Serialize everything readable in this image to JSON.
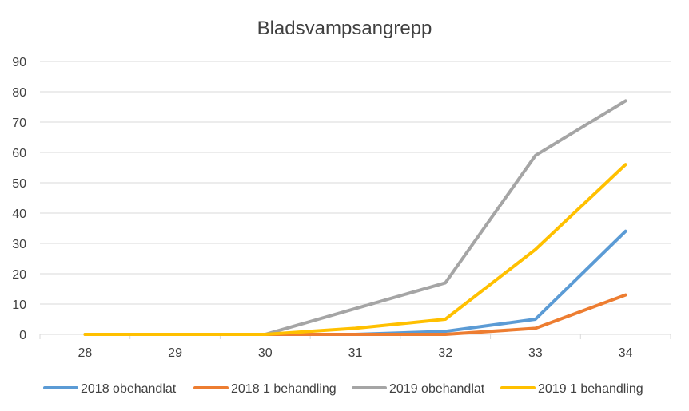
{
  "chart_data": {
    "type": "line",
    "title": "Bladsvampsangrepp",
    "xlabel": "",
    "ylabel": "",
    "categories": [
      "28",
      "29",
      "30",
      "31",
      "32",
      "33",
      "34"
    ],
    "ylim": [
      0,
      90
    ],
    "yticks": [
      0,
      10,
      20,
      30,
      40,
      50,
      60,
      70,
      80,
      90
    ],
    "grid": true,
    "legend_position": "bottom",
    "series": [
      {
        "name": "2018 obehandlat",
        "color": "#5b9bd5",
        "values": [
          null,
          null,
          0,
          0,
          1,
          5,
          34
        ]
      },
      {
        "name": "2018 1 behandling",
        "color": "#ed7d31",
        "values": [
          null,
          null,
          0,
          0,
          0,
          2,
          13
        ]
      },
      {
        "name": "2019 obehandlat",
        "color": "#a5a5a5",
        "values": [
          0,
          0,
          0,
          8.5,
          17,
          59,
          77
        ]
      },
      {
        "name": "2019 1 behandling",
        "color": "#ffc000",
        "values": [
          0,
          0,
          0,
          2,
          5,
          28,
          56
        ]
      }
    ]
  }
}
